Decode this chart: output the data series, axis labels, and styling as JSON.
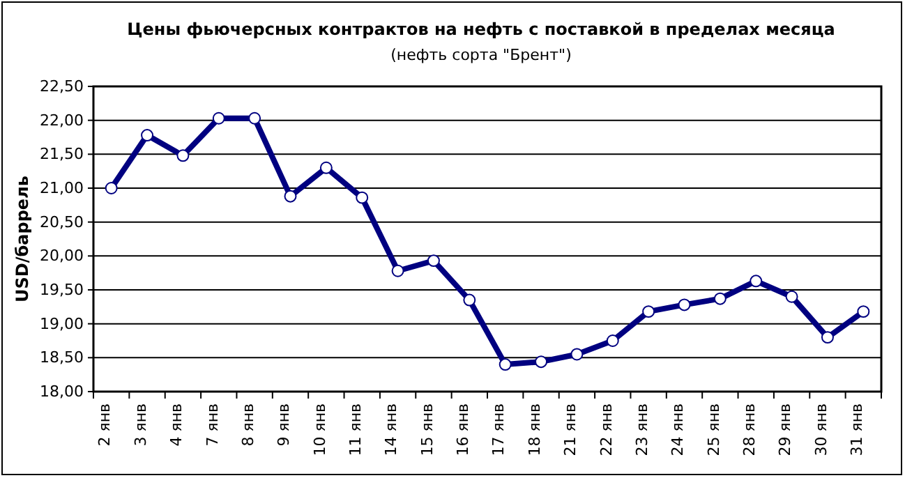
{
  "chart_data": {
    "type": "line",
    "title": "Цены фьючерсных контрактов на нефть с поставкой в пределах месяца",
    "subtitle": "(нефть сорта \"Брент\")",
    "ylabel": "USD/баррель",
    "categories": [
      "2 янв",
      "3 янв",
      "4 янв",
      "7 янв",
      "8 янв",
      "9 янв",
      "10 янв",
      "11 янв",
      "14 янв",
      "15 янв",
      "16 янв",
      "17 янв",
      "18 янв",
      "21 янв",
      "22 янв",
      "23 янв",
      "24 янв",
      "25 янв",
      "28 янв",
      "29 янв",
      "30 янв",
      "31 янв"
    ],
    "series": [
      {
        "color": "#000080",
        "values": [
          21.0,
          21.78,
          21.48,
          22.03,
          22.03,
          20.88,
          21.3,
          20.86,
          19.78,
          19.93,
          19.35,
          18.4,
          18.44,
          18.55,
          18.75,
          19.18,
          19.28,
          19.37,
          19.63,
          19.4,
          18.8,
          19.18
        ]
      }
    ],
    "ylim": [
      18,
      22.5
    ],
    "yticks": [
      {
        "value": 18,
        "label": "18,00"
      },
      {
        "value": 18.5,
        "label": "18,50"
      },
      {
        "value": 19,
        "label": "19,00"
      },
      {
        "value": 19.5,
        "label": "19,50"
      },
      {
        "value": 20,
        "label": "20,00"
      },
      {
        "value": 20.5,
        "label": "20,50"
      },
      {
        "value": 21,
        "label": "21,00"
      },
      {
        "value": 21.5,
        "label": "21,50"
      },
      {
        "value": 22,
        "label": "22,00"
      },
      {
        "value": 22.5,
        "label": "22,50"
      }
    ],
    "grid": "y",
    "marker": "circle",
    "line_style": "solid",
    "legend": false
  }
}
